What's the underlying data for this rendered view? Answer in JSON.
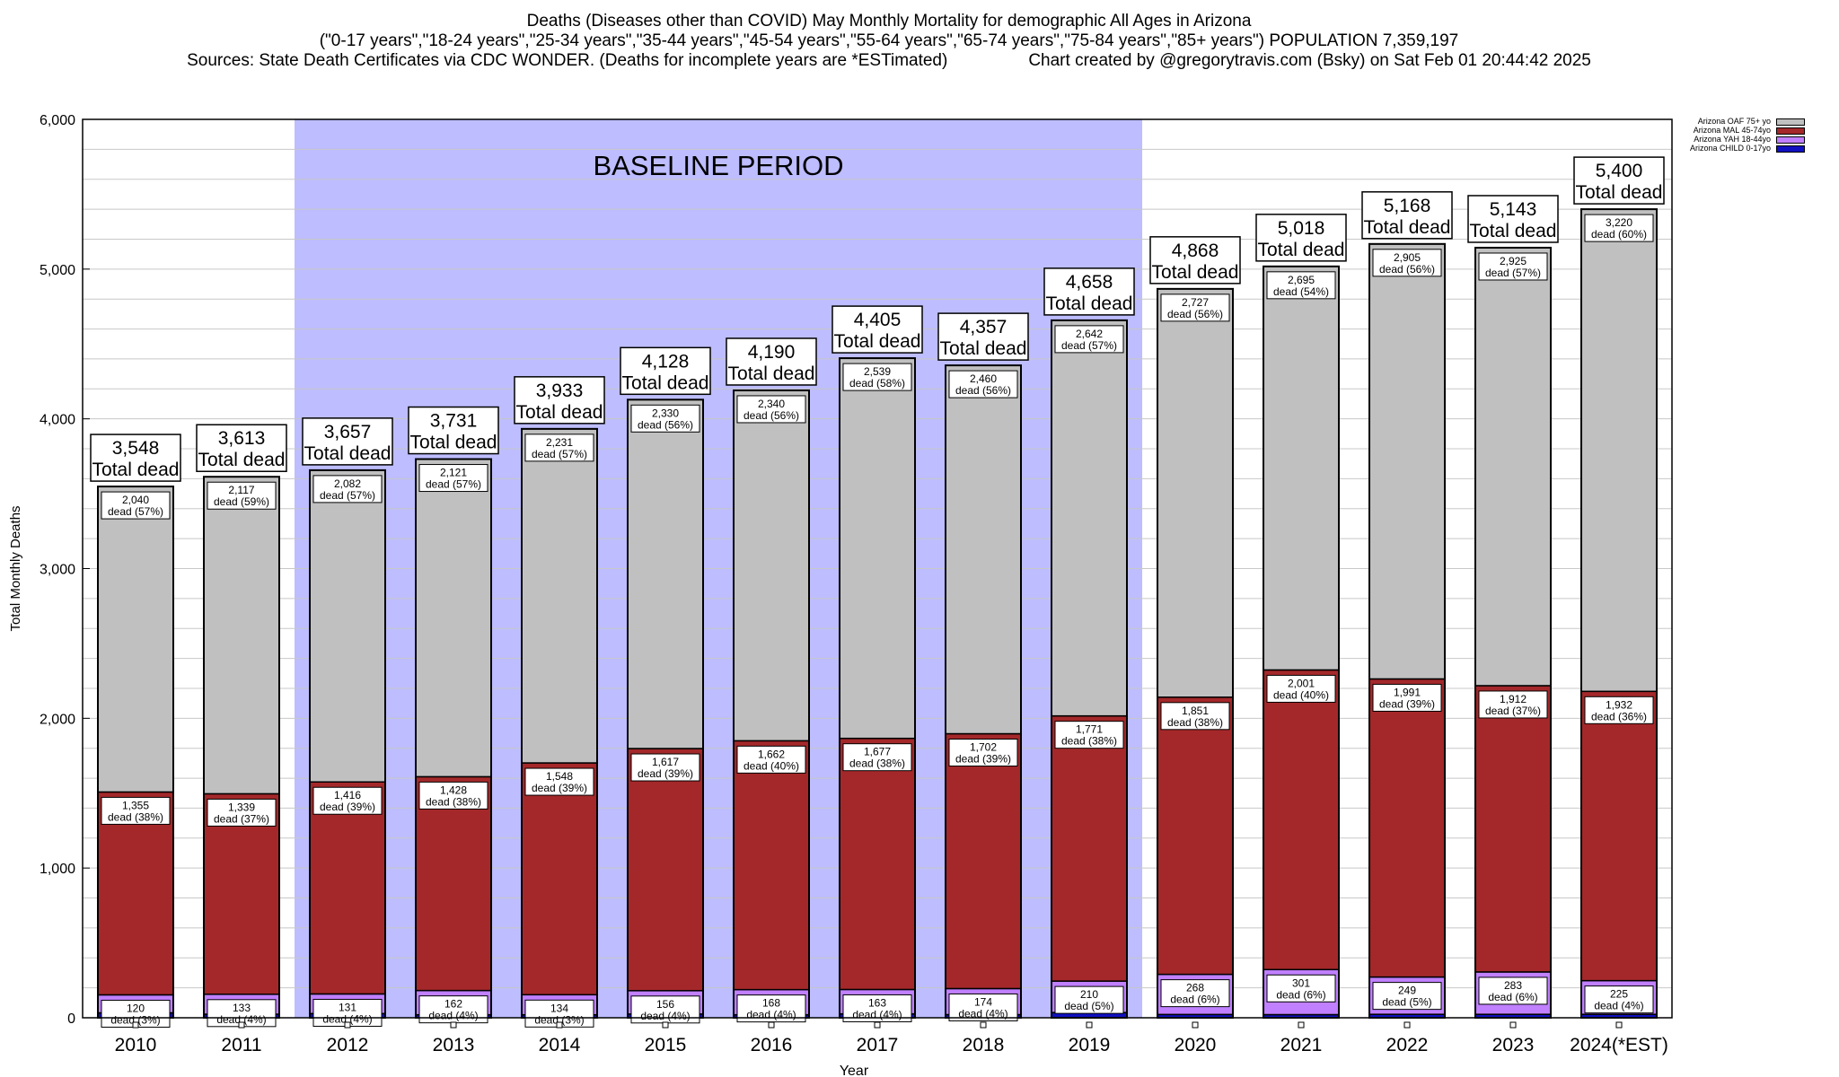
{
  "header": {
    "line1": "Deaths (Diseases other than COVID) May Monthly Mortality for demographic All Ages in Arizona",
    "line2": "(\"0-17 years\",\"18-24 years\",\"25-34 years\",\"35-44 years\",\"45-54 years\",\"55-64 years\",\"65-74 years\",\"75-84 years\",\"85+ years\") POPULATION 7,359,197",
    "line3_left": "Sources: State Death Certificates via CDC WONDER. (Deaths for incomplete years are *ESTimated)",
    "line3_right": "Chart created by @gregorytravis.com (Bsky) on Sat Feb 01 20:44:42 2025"
  },
  "legend": {
    "items": [
      {
        "label": "Arizona OAF 75+ yo",
        "color": "#c0c0c0"
      },
      {
        "label": "Arizona MAL 45-74yo",
        "color": "#a4282a"
      },
      {
        "label": "Arizona YAH 18-44yo",
        "color": "#c080ff"
      },
      {
        "label": "Arizona CHILD 0-17yo",
        "color": "#1010c0"
      }
    ]
  },
  "chart_data": {
    "type": "bar",
    "stacked": true,
    "xlabel": "Year",
    "ylabel": "Total Monthly Deaths",
    "ylim": [
      0,
      6000
    ],
    "yticks": [
      "0",
      "1,000",
      "2,000",
      "3,000",
      "4,000",
      "5,000",
      "6,000"
    ],
    "grid": true,
    "legend_position": "top-right",
    "baseline_label": "BASELINE PERIOD",
    "baseline_range": [
      "2012",
      "2019"
    ],
    "baseline_color": "#bdbdff",
    "total_suffix": "Total dead",
    "categories": [
      "2010",
      "2011",
      "2012",
      "2013",
      "2014",
      "2015",
      "2016",
      "2017",
      "2018",
      "2019",
      "2020",
      "2021",
      "2022",
      "2023",
      "2024(*EST)"
    ],
    "totals": [
      "3,548",
      "3,613",
      "3,657",
      "3,731",
      "3,933",
      "4,128",
      "4,190",
      "4,405",
      "4,357",
      "4,658",
      "4,868",
      "5,018",
      "5,168",
      "5,143",
      "5,400"
    ],
    "series": [
      {
        "name": "Arizona CHILD 0-17yo",
        "color": "#1010c0",
        "values": [
          33,
          24,
          28,
          20,
          20,
          25,
          20,
          26,
          21,
          35,
          22,
          21,
          23,
          23,
          23
        ]
      },
      {
        "name": "Arizona YAH 18-44yo",
        "color": "#c080ff",
        "values": [
          120,
          133,
          131,
          162,
          134,
          156,
          168,
          163,
          174,
          210,
          268,
          301,
          249,
          283,
          225
        ],
        "labels": [
          "120\ndead (3%)",
          "133\ndead (4%)",
          "131\ndead (4%)",
          "162\ndead (4%)",
          "134\ndead (3%)",
          "156\ndead (4%)",
          "168\ndead (4%)",
          "163\ndead (4%)",
          "174\ndead (4%)",
          "210\ndead (5%)",
          "268\ndead (6%)",
          "301\ndead (6%)",
          "249\ndead (5%)",
          "283\ndead (6%)",
          "225\ndead (4%)"
        ]
      },
      {
        "name": "Arizona MAL 45-74yo",
        "color": "#a4282a",
        "values": [
          1355,
          1339,
          1416,
          1428,
          1548,
          1617,
          1662,
          1677,
          1702,
          1771,
          1851,
          2001,
          1991,
          1912,
          1932
        ],
        "labels": [
          "1,355\ndead (38%)",
          "1,339\ndead (37%)",
          "1,416\ndead (39%)",
          "1,428\ndead (38%)",
          "1,548\ndead (39%)",
          "1,617\ndead (39%)",
          "1,662\ndead (40%)",
          "1,677\ndead (38%)",
          "1,702\ndead (39%)",
          "1,771\ndead (38%)",
          "1,851\ndead (38%)",
          "2,001\ndead (40%)",
          "1,991\ndead (39%)",
          "1,912\ndead (37%)",
          "1,932\ndead (36%)"
        ]
      },
      {
        "name": "Arizona OAF 75+ yo",
        "color": "#c0c0c0",
        "values": [
          2040,
          2117,
          2082,
          2121,
          2231,
          2330,
          2340,
          2539,
          2460,
          2642,
          2727,
          2695,
          2905,
          2925,
          3220
        ],
        "labels": [
          "2,040\ndead (57%)",
          "2,117\ndead (59%)",
          "2,082\ndead (57%)",
          "2,121\ndead (57%)",
          "2,231\ndead (57%)",
          "2,330\ndead (56%)",
          "2,340\ndead (56%)",
          "2,539\ndead (58%)",
          "2,460\ndead (56%)",
          "2,642\ndead (57%)",
          "2,727\ndead (56%)",
          "2,695\ndead (54%)",
          "2,905\ndead (56%)",
          "2,925\ndead (57%)",
          "3,220\ndead (60%)"
        ]
      }
    ]
  }
}
